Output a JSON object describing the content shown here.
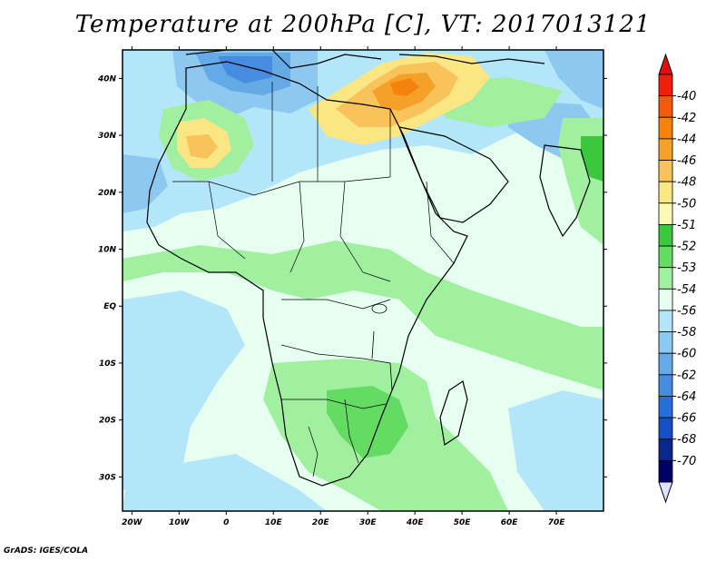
{
  "title": "Temperature at 200hPa [C], VT: 2017013121",
  "credit": "GrADS: IGES/COLA",
  "map": {
    "lon_range": [
      -22,
      80
    ],
    "lat_range": [
      -36,
      45
    ],
    "lon_ticks": [
      "20W",
      "10W",
      "0",
      "10E",
      "20E",
      "30E",
      "40E",
      "50E",
      "60E",
      "70E"
    ],
    "lat_ticks": [
      "40N",
      "30N",
      "20N",
      "10N",
      "EQ",
      "10S",
      "20S",
      "30S"
    ]
  },
  "colorbar": {
    "labels": [
      "-40",
      "-42",
      "-44",
      "-46",
      "-48",
      "-50",
      "-51",
      "-52",
      "-53",
      "-54",
      "-56",
      "-58",
      "-60",
      "-62",
      "-64",
      "-66",
      "-68",
      "-70"
    ],
    "colors": [
      "#f01e0c",
      "#f55a0c",
      "#f5820c",
      "#f5a028",
      "#f8c35a",
      "#fae682",
      "#fafab4",
      "#3cc83c",
      "#64dc64",
      "#a0f0a0",
      "#e6fff0",
      "#b4e6fa",
      "#8cc8f0",
      "#64aae6",
      "#468ce1",
      "#286ed7",
      "#1450c3",
      "#0a288c",
      "#000064"
    ],
    "top_arrow_color": "#e01010",
    "bottom_arrow_color": "#e0e0ff"
  }
}
